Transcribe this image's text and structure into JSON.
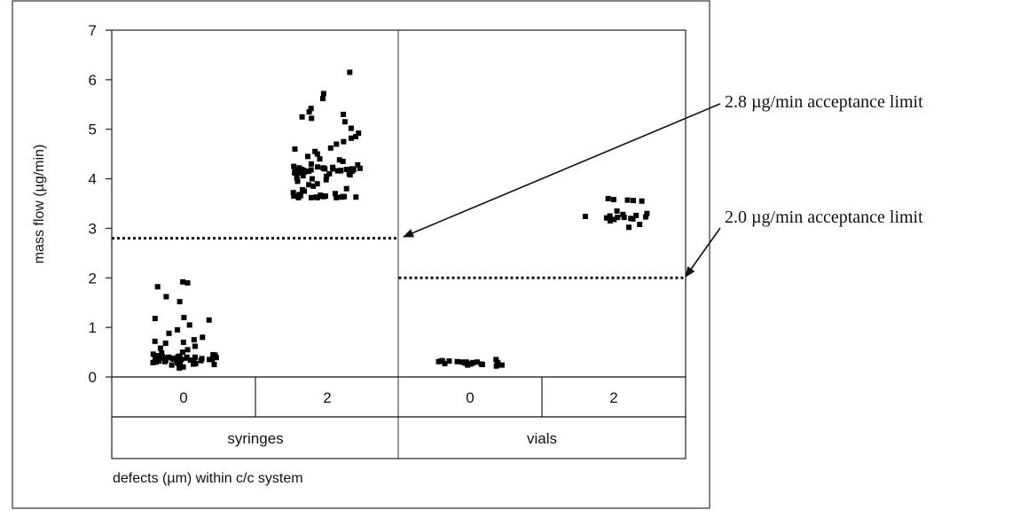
{
  "chart_data": {
    "type": "scatter",
    "ylabel": "mass flow (µg/min)",
    "xlabel": "defects (µm) within c/c system",
    "ylim": [
      0,
      7
    ],
    "yticks": [
      0,
      1,
      2,
      3,
      4,
      5,
      6,
      7
    ],
    "groups": [
      {
        "label": "syringes",
        "categories": [
          "0",
          "2"
        ]
      },
      {
        "label": "vials",
        "categories": [
          "0",
          "2"
        ]
      }
    ],
    "series": [
      {
        "group": "syringes",
        "category": "0",
        "values": [
          1.92,
          1.9,
          1.82,
          1.62,
          1.52,
          1.2,
          1.18,
          1.15,
          1.05,
          0.95,
          0.88,
          0.8,
          0.75,
          0.72,
          0.7,
          0.68,
          0.62,
          0.58,
          0.55,
          0.5,
          0.48,
          0.46,
          0.45,
          0.44,
          0.43,
          0.42,
          0.42,
          0.41,
          0.41,
          0.4,
          0.4,
          0.4,
          0.39,
          0.39,
          0.39,
          0.38,
          0.38,
          0.38,
          0.37,
          0.37,
          0.37,
          0.36,
          0.36,
          0.36,
          0.35,
          0.35,
          0.35,
          0.34,
          0.34,
          0.33,
          0.33,
          0.32,
          0.32,
          0.31,
          0.3,
          0.3,
          0.29,
          0.28,
          0.27,
          0.26,
          0.25,
          0.24,
          0.22,
          0.2,
          0.18
        ]
      },
      {
        "group": "syringes",
        "category": "2",
        "values": [
          6.15,
          5.72,
          5.62,
          5.42,
          5.35,
          5.3,
          5.25,
          5.22,
          5.15,
          5.02,
          4.92,
          4.85,
          4.82,
          4.75,
          4.7,
          4.62,
          4.6,
          4.55,
          4.5,
          4.45,
          4.4,
          4.38,
          4.35,
          4.3,
          4.28,
          4.25,
          4.24,
          4.23,
          4.22,
          4.22,
          4.21,
          4.21,
          4.2,
          4.2,
          4.2,
          4.19,
          4.19,
          4.18,
          4.18,
          4.18,
          4.17,
          4.17,
          4.16,
          4.16,
          4.15,
          4.15,
          4.14,
          4.14,
          4.13,
          4.12,
          4.12,
          4.1,
          4.1,
          4.08,
          4.06,
          4.05,
          4.02,
          4.0,
          3.98,
          3.95,
          3.9,
          3.88,
          3.85,
          3.8,
          3.78,
          3.75,
          3.72,
          3.7,
          3.68,
          3.67,
          3.66,
          3.65,
          3.65,
          3.65,
          3.64,
          3.64,
          3.64,
          3.63,
          3.63,
          3.63,
          3.62,
          3.62,
          3.62,
          3.62
        ]
      },
      {
        "group": "vials",
        "category": "0",
        "values": [
          0.35,
          0.33,
          0.32,
          0.32,
          0.31,
          0.31,
          0.3,
          0.3,
          0.3,
          0.29,
          0.29,
          0.28,
          0.28,
          0.27,
          0.27,
          0.26,
          0.26,
          0.25,
          0.25,
          0.24,
          0.24,
          0.22
        ]
      },
      {
        "group": "vials",
        "category": "2",
        "values": [
          3.6,
          3.58,
          3.57,
          3.56,
          3.55,
          3.35,
          3.3,
          3.28,
          3.26,
          3.25,
          3.24,
          3.23,
          3.22,
          3.22,
          3.21,
          3.2,
          3.19,
          3.18,
          3.15,
          3.08,
          3.02
        ]
      }
    ],
    "reference_lines": [
      {
        "group": "syringes",
        "value": 2.8,
        "label": "2.8 µg/min acceptance limit"
      },
      {
        "group": "vials",
        "value": 2.0,
        "label": "2.0 µg/min acceptance limit"
      }
    ]
  }
}
